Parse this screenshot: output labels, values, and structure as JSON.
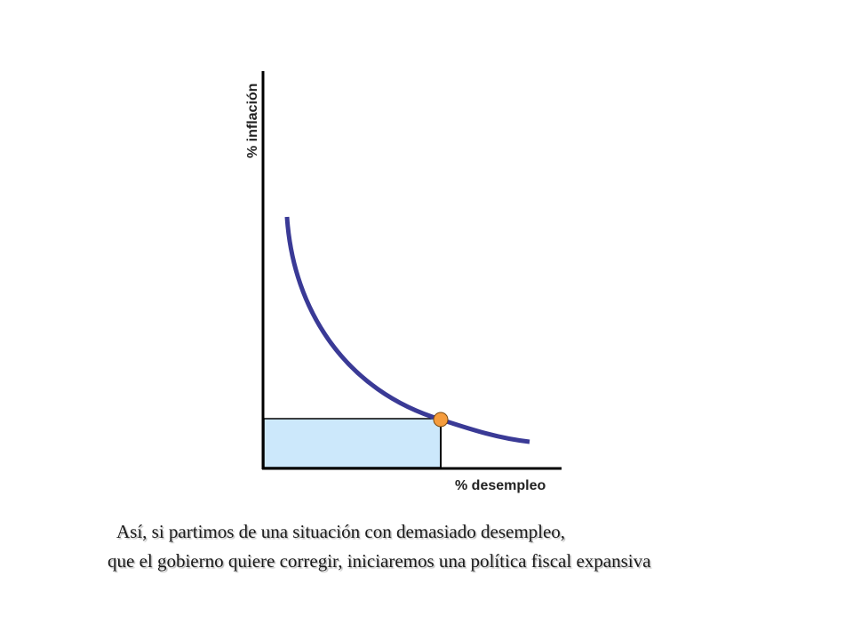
{
  "diagram": {
    "y_axis_label": "% inflación",
    "x_axis_label": "% desempleo",
    "colors": {
      "curve": "#3a3a96",
      "axis": "#000000",
      "shaded_area": "#cce8fb",
      "point": "#f59c3d",
      "point_outline": "#7a4a10"
    }
  },
  "caption": {
    "line1": "Así, si partimos de una situación con demasiado desempleo,",
    "line2": "que el gobierno quiere corregir, iniciaremos una política fiscal expansiva"
  }
}
